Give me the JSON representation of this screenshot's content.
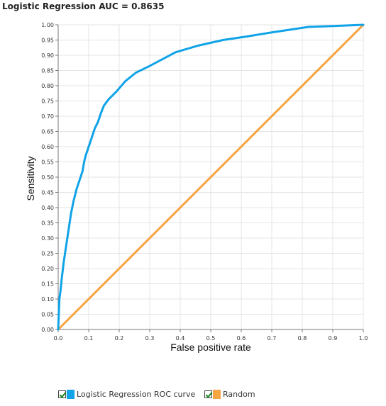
{
  "chart_data": {
    "type": "line",
    "title": "Logistic Regression AUC = 0.8635",
    "xlabel": "False positive rate",
    "ylabel": "Sensitivity",
    "xlim": [
      0,
      1
    ],
    "ylim": [
      0,
      1
    ],
    "x_ticks": [
      "0.0",
      "0.1",
      "0.2",
      "0.3",
      "0.4",
      "0.5",
      "0.6",
      "0.7",
      "0.8",
      "0.9",
      "1.0"
    ],
    "y_ticks": [
      "0.00",
      "0.05",
      "0.10",
      "0.15",
      "0.20",
      "0.25",
      "0.30",
      "0.35",
      "0.40",
      "0.45",
      "0.50",
      "0.55",
      "0.60",
      "0.65",
      "0.70",
      "0.75",
      "0.80",
      "0.85",
      "0.90",
      "0.95",
      "1.00"
    ],
    "grid": true,
    "legend_position": "bottom",
    "series": [
      {
        "name": "Logistic Regression ROC curve",
        "color": "#10a3e8",
        "points": [
          [
            0,
            0
          ],
          [
            0.002,
            0.05
          ],
          [
            0.004,
            0.1
          ],
          [
            0.008,
            0.13
          ],
          [
            0.012,
            0.17
          ],
          [
            0.018,
            0.22
          ],
          [
            0.024,
            0.26
          ],
          [
            0.03,
            0.3
          ],
          [
            0.036,
            0.34
          ],
          [
            0.042,
            0.38
          ],
          [
            0.05,
            0.42
          ],
          [
            0.06,
            0.46
          ],
          [
            0.07,
            0.49
          ],
          [
            0.08,
            0.52
          ],
          [
            0.085,
            0.55
          ],
          [
            0.09,
            0.57
          ],
          [
            0.1,
            0.6
          ],
          [
            0.11,
            0.63
          ],
          [
            0.12,
            0.66
          ],
          [
            0.13,
            0.68
          ],
          [
            0.14,
            0.71
          ],
          [
            0.15,
            0.735
          ],
          [
            0.165,
            0.755
          ],
          [
            0.19,
            0.78
          ],
          [
            0.22,
            0.815
          ],
          [
            0.255,
            0.843
          ],
          [
            0.3,
            0.865
          ],
          [
            0.385,
            0.91
          ],
          [
            0.46,
            0.932
          ],
          [
            0.54,
            0.95
          ],
          [
            0.62,
            0.962
          ],
          [
            0.7,
            0.975
          ],
          [
            0.82,
            0.993
          ],
          [
            0.9,
            0.996
          ],
          [
            1.0,
            1.0
          ]
        ]
      },
      {
        "name": "Random",
        "color": "#f7a442",
        "points": [
          [
            0,
            0
          ],
          [
            1,
            1
          ]
        ]
      }
    ]
  }
}
